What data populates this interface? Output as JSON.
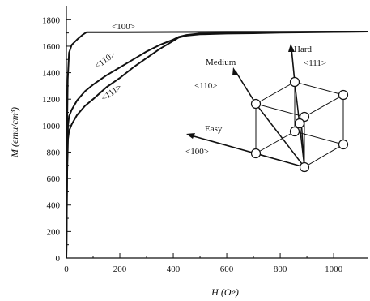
{
  "chart_data": {
    "type": "line",
    "title": "",
    "xlabel": "H (Oe)",
    "ylabel": "M (emu/cm³)",
    "xlim": [
      0,
      1130
    ],
    "ylim": [
      0,
      1900
    ],
    "x_ticks": [
      0,
      200,
      400,
      600,
      800,
      1000
    ],
    "y_ticks": [
      0,
      200,
      400,
      600,
      800,
      1000,
      1200,
      1400,
      1600,
      1800
    ],
    "x_tick_labels": [
      "0",
      "200",
      "400",
      "600",
      "800",
      "1000"
    ],
    "y_tick_labels": [
      "0",
      "200",
      "400",
      "600",
      "800",
      "1000",
      "1200",
      "1400",
      "1600",
      "1800"
    ],
    "grid": false,
    "series": [
      {
        "name": "<100>",
        "x": [
          0,
          2,
          5,
          10,
          20,
          40,
          60,
          75,
          100,
          200,
          400,
          600,
          800,
          1000,
          1130
        ],
        "y": [
          0,
          900,
          1350,
          1550,
          1610,
          1650,
          1685,
          1705,
          1705,
          1706,
          1707,
          1708,
          1709,
          1710,
          1710
        ]
      },
      {
        "name": "<110>",
        "x": [
          0,
          3,
          6,
          10,
          20,
          40,
          70,
          100,
          150,
          200,
          250,
          300,
          350,
          400,
          420,
          450,
          500,
          600,
          700,
          800,
          1000,
          1130
        ],
        "y": [
          0,
          750,
          1000,
          1070,
          1120,
          1190,
          1260,
          1310,
          1380,
          1440,
          1500,
          1560,
          1610,
          1650,
          1670,
          1685,
          1695,
          1700,
          1703,
          1706,
          1709,
          1710
        ]
      },
      {
        "name": "<111>",
        "x": [
          0,
          3,
          6,
          10,
          20,
          40,
          70,
          100,
          150,
          200,
          250,
          300,
          350,
          400,
          420,
          450,
          500,
          600,
          700,
          800,
          1000,
          1130
        ],
        "y": [
          0,
          650,
          900,
          960,
          1010,
          1080,
          1150,
          1200,
          1290,
          1360,
          1440,
          1510,
          1580,
          1640,
          1665,
          1680,
          1690,
          1695,
          1698,
          1702,
          1707,
          1710
        ]
      }
    ],
    "annotations": {
      "label_100": "<100>",
      "label_110": "<110>",
      "label_111": "<111>"
    }
  },
  "crystal_diagram": {
    "medium_label": "Medium",
    "medium_dir": "<110>",
    "hard_label": "Hard",
    "hard_dir": "<111>",
    "easy_label": "Easy",
    "easy_dir": "<100>"
  },
  "colors": {
    "ink": "#111111",
    "background": "#ffffff"
  }
}
